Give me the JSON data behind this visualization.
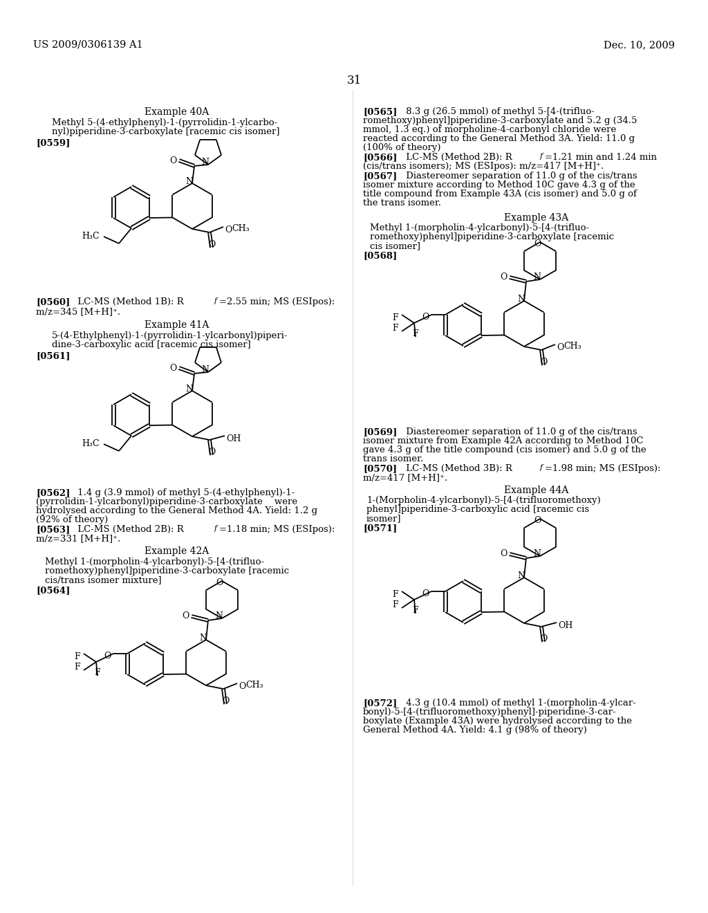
{
  "page_number": "31",
  "header_left": "US 2009/0306139 A1",
  "header_right": "Dec. 10, 2009",
  "background_color": "#ffffff"
}
